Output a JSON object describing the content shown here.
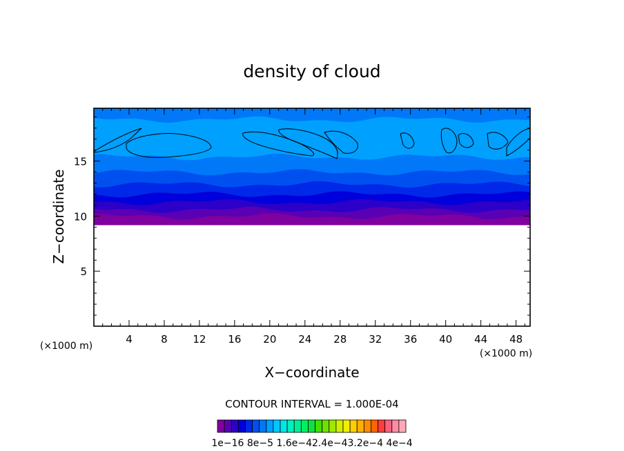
{
  "chart_data": {
    "type": "heatmap",
    "title": "density of cloud",
    "xlabel": "X−coordinate",
    "ylabel": "Z−coordinate",
    "x_unit_label": "(×1000 m)",
    "y_unit_label": "(×1000 m)",
    "xlim": [
      0,
      49.6
    ],
    "ylim": [
      0,
      19.8
    ],
    "x_ticks": [
      4,
      8,
      12,
      16,
      20,
      24,
      28,
      32,
      36,
      40,
      44,
      48
    ],
    "y_ticks": [
      5,
      10,
      15
    ],
    "contour_interval_label": "CONTOUR INTERVAL = 1.000E-04",
    "colorbar_labels": [
      "1e−16",
      "8e−5",
      "1.6e−4",
      "2.4e−4",
      "3.2e−4",
      "4e−4"
    ],
    "colorbar_label_text": "1e−16 8e−5 1.6e−42.4e−43.2e−4 4e−4",
    "colorbar_colors": [
      "#8000a0",
      "#5a00b4",
      "#2c00c8",
      "#0000dc",
      "#0028e8",
      "#0050f0",
      "#0078f8",
      "#00a0ff",
      "#00c8ff",
      "#00e6e6",
      "#00f0c0",
      "#00f096",
      "#00f064",
      "#10e040",
      "#40e000",
      "#70e000",
      "#a0e800",
      "#d0f000",
      "#f0f000",
      "#ffd000",
      "#ffb000",
      "#ff8c00",
      "#ff6400",
      "#ff3c3c",
      "#ff6080",
      "#ff8ca0",
      "#ffa8b8"
    ],
    "bands": [
      {
        "z": [
          9.2,
          10.0
        ],
        "color": "#8000a0"
      },
      {
        "z": [
          10.0,
          10.6
        ],
        "color": "#5a00b4"
      },
      {
        "z": [
          10.6,
          11.3
        ],
        "color": "#2c00c8"
      },
      {
        "z": [
          11.3,
          12.0
        ],
        "color": "#0000dc"
      },
      {
        "z": [
          12.0,
          12.9
        ],
        "color": "#0028e8"
      },
      {
        "z": [
          12.9,
          14.0
        ],
        "color": "#0050f0"
      },
      {
        "z": [
          14.0,
          15.4
        ],
        "color": "#0078f8"
      },
      {
        "z": [
          15.4,
          18.8
        ],
        "color": "#00a0ff"
      },
      {
        "z": [
          18.8,
          19.8
        ],
        "color": "#0078f8"
      }
    ]
  }
}
